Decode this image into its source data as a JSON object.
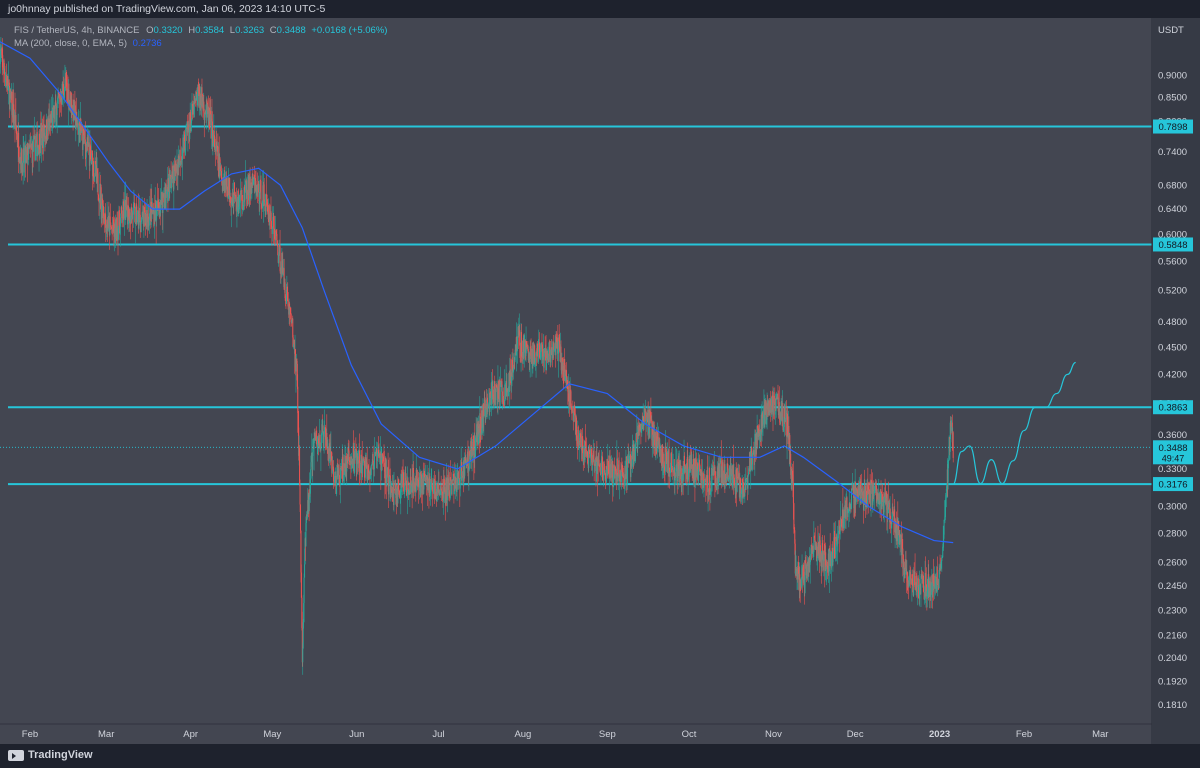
{
  "header": {
    "published_text": "jo0hnnay published on TradingView.com, Jan 06, 2023 14:10 UTC-5"
  },
  "legend": {
    "symbol_line": {
      "symbol": "FIS / TetherUS, 4h, BINANCE",
      "o_label": "O",
      "o_value": "0.3320",
      "h_label": "H",
      "h_value": "0.3584",
      "l_label": "L",
      "l_value": "0.3263",
      "c_label": "C",
      "c_value": "0.3488",
      "change": "+0.0168 (+5.06%)"
    },
    "ma_line": {
      "label": "MA (200, close, 0, EMA, 5)",
      "value": "0.2736"
    }
  },
  "colors": {
    "background": "#434651",
    "up": "#26a69a",
    "down": "#ef5350",
    "accent": "#26c6da",
    "ema": "#2962ff",
    "text": "#d1d4dc"
  },
  "footer": {
    "brand": "TradingView",
    "logo_icon": "tradingview-logo-icon"
  },
  "chart_data": {
    "type": "candlestick",
    "y_axis": {
      "currency": "USDT",
      "scale": "log",
      "ticks": [
        "0.9000",
        "0.8500",
        "0.8000",
        "0.7400",
        "0.6800",
        "0.6400",
        "0.6000",
        "0.5600",
        "0.5200",
        "0.4800",
        "0.4500",
        "0.4200",
        "0.3900",
        "0.3600",
        "0.3300",
        "0.3000",
        "0.2800",
        "0.2600",
        "0.2450",
        "0.2300",
        "0.2160",
        "0.2040",
        "0.1920",
        "0.1810"
      ],
      "range": [
        0.175,
        1.01
      ]
    },
    "x_axis": {
      "ticks": [
        "Feb",
        "Mar",
        "Apr",
        "May",
        "Jun",
        "Jul",
        "Aug",
        "Sep",
        "Oct",
        "Nov",
        "Dec",
        "2023",
        "Feb",
        "Mar"
      ],
      "range": [
        "2022-01-21",
        "2023-03-20"
      ]
    },
    "horizontal_levels": [
      {
        "price": 0.7898,
        "label": "0.7898"
      },
      {
        "price": 0.5848,
        "label": "0.5848"
      },
      {
        "price": 0.3863,
        "label": "0.3863"
      },
      {
        "price": 0.3176,
        "label": "0.3176"
      }
    ],
    "current_price": {
      "price": 0.3488,
      "label": "0.3488",
      "countdown": "49:47"
    },
    "price_series": [
      [
        "2022-01-21",
        0.96
      ],
      [
        "2022-01-25",
        0.84
      ],
      [
        "2022-01-29",
        0.72
      ],
      [
        "2022-02-03",
        0.75
      ],
      [
        "2022-02-09",
        0.8
      ],
      [
        "2022-02-14",
        0.88
      ],
      [
        "2022-02-18",
        0.8
      ],
      [
        "2022-02-24",
        0.72
      ],
      [
        "2022-03-01",
        0.62
      ],
      [
        "2022-03-04",
        0.6
      ],
      [
        "2022-03-08",
        0.64
      ],
      [
        "2022-03-14",
        0.62
      ],
      [
        "2022-03-20",
        0.64
      ],
      [
        "2022-03-26",
        0.7
      ],
      [
        "2022-03-31",
        0.78
      ],
      [
        "2022-04-04",
        0.86
      ],
      [
        "2022-04-08",
        0.8
      ],
      [
        "2022-04-12",
        0.7
      ],
      [
        "2022-04-18",
        0.65
      ],
      [
        "2022-04-24",
        0.68
      ],
      [
        "2022-04-28",
        0.66
      ],
      [
        "2022-05-02",
        0.6
      ],
      [
        "2022-05-05",
        0.54
      ],
      [
        "2022-05-08",
        0.48
      ],
      [
        "2022-05-10",
        0.42
      ],
      [
        "2022-05-11",
        0.32
      ],
      [
        "2022-05-12",
        0.2
      ],
      [
        "2022-05-13",
        0.27
      ],
      [
        "2022-05-16",
        0.35
      ],
      [
        "2022-05-20",
        0.36
      ],
      [
        "2022-05-24",
        0.32
      ],
      [
        "2022-05-30",
        0.34
      ],
      [
        "2022-06-04",
        0.33
      ],
      [
        "2022-06-10",
        0.34
      ],
      [
        "2022-06-14",
        0.31
      ],
      [
        "2022-06-20",
        0.32
      ],
      [
        "2022-06-26",
        0.32
      ],
      [
        "2022-07-02",
        0.31
      ],
      [
        "2022-07-08",
        0.32
      ],
      [
        "2022-07-14",
        0.35
      ],
      [
        "2022-07-20",
        0.4
      ],
      [
        "2022-07-26",
        0.4
      ],
      [
        "2022-07-30",
        0.46
      ],
      [
        "2022-08-04",
        0.44
      ],
      [
        "2022-08-10",
        0.44
      ],
      [
        "2022-08-14",
        0.45
      ],
      [
        "2022-08-18",
        0.4
      ],
      [
        "2022-08-22",
        0.35
      ],
      [
        "2022-08-28",
        0.33
      ],
      [
        "2022-09-03",
        0.33
      ],
      [
        "2022-09-09",
        0.33
      ],
      [
        "2022-09-15",
        0.38
      ],
      [
        "2022-09-21",
        0.34
      ],
      [
        "2022-09-27",
        0.33
      ],
      [
        "2022-10-03",
        0.33
      ],
      [
        "2022-10-09",
        0.32
      ],
      [
        "2022-10-15",
        0.33
      ],
      [
        "2022-10-21",
        0.31
      ],
      [
        "2022-10-25",
        0.35
      ],
      [
        "2022-10-29",
        0.38
      ],
      [
        "2022-11-02",
        0.39
      ],
      [
        "2022-11-06",
        0.37
      ],
      [
        "2022-11-08",
        0.32
      ],
      [
        "2022-11-09",
        0.26
      ],
      [
        "2022-11-12",
        0.25
      ],
      [
        "2022-11-16",
        0.27
      ],
      [
        "2022-11-22",
        0.26
      ],
      [
        "2022-11-26",
        0.29
      ],
      [
        "2022-12-01",
        0.31
      ],
      [
        "2022-12-07",
        0.31
      ],
      [
        "2022-12-13",
        0.3
      ],
      [
        "2022-12-17",
        0.28
      ],
      [
        "2022-12-20",
        0.25
      ],
      [
        "2022-12-24",
        0.245
      ],
      [
        "2022-12-28",
        0.245
      ],
      [
        "2023-01-01",
        0.25
      ],
      [
        "2023-01-03",
        0.29
      ],
      [
        "2023-01-05",
        0.37
      ],
      [
        "2023-01-06",
        0.3488
      ]
    ],
    "ema_series": [
      [
        "2022-01-21",
        0.98
      ],
      [
        "2022-02-01",
        0.94
      ],
      [
        "2022-02-12",
        0.86
      ],
      [
        "2022-02-22",
        0.78
      ],
      [
        "2022-03-02",
        0.72
      ],
      [
        "2022-03-10",
        0.67
      ],
      [
        "2022-03-18",
        0.64
      ],
      [
        "2022-03-28",
        0.64
      ],
      [
        "2022-04-06",
        0.67
      ],
      [
        "2022-04-16",
        0.7
      ],
      [
        "2022-04-26",
        0.71
      ],
      [
        "2022-05-04",
        0.68
      ],
      [
        "2022-05-12",
        0.61
      ],
      [
        "2022-05-20",
        0.52
      ],
      [
        "2022-05-30",
        0.43
      ],
      [
        "2022-06-10",
        0.37
      ],
      [
        "2022-06-24",
        0.34
      ],
      [
        "2022-07-08",
        0.33
      ],
      [
        "2022-07-22",
        0.35
      ],
      [
        "2022-08-05",
        0.38
      ],
      [
        "2022-08-18",
        0.41
      ],
      [
        "2022-09-01",
        0.4
      ],
      [
        "2022-09-15",
        0.37
      ],
      [
        "2022-09-29",
        0.35
      ],
      [
        "2022-10-13",
        0.34
      ],
      [
        "2022-10-27",
        0.34
      ],
      [
        "2022-11-05",
        0.35
      ],
      [
        "2022-11-12",
        0.34
      ],
      [
        "2022-11-24",
        0.32
      ],
      [
        "2022-12-06",
        0.3
      ],
      [
        "2022-12-18",
        0.285
      ],
      [
        "2022-12-30",
        0.275
      ],
      [
        "2023-01-06",
        0.2736
      ]
    ],
    "projection": [
      [
        "2023-01-06",
        0.3176
      ],
      [
        "2023-01-09",
        0.345
      ],
      [
        "2023-01-12",
        0.35
      ],
      [
        "2023-01-16",
        0.318
      ],
      [
        "2023-01-20",
        0.338
      ],
      [
        "2023-01-24",
        0.318
      ],
      [
        "2023-01-28",
        0.337
      ],
      [
        "2023-02-01",
        0.364
      ],
      [
        "2023-02-05",
        0.386
      ],
      [
        "2023-02-09",
        0.386
      ],
      [
        "2023-02-13",
        0.4
      ],
      [
        "2023-02-17",
        0.42
      ],
      [
        "2023-02-20",
        0.433
      ]
    ]
  }
}
